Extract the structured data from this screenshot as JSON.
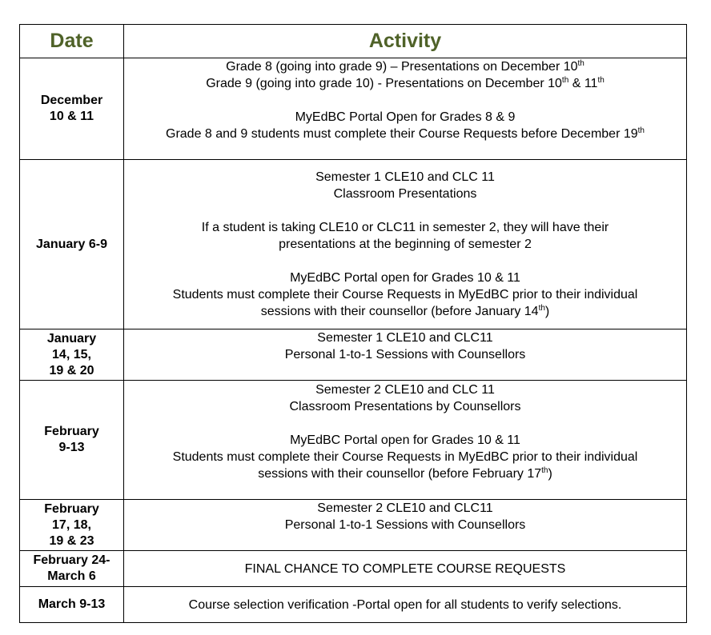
{
  "header": {
    "date": "Date",
    "activity": "Activity",
    "color": "#4f6228"
  },
  "rows": [
    {
      "date": [
        "December",
        "10 & 11"
      ],
      "height": 126,
      "lines": [
        [
          {
            "t": "Grade 8 (going into grade 9) – Presentations on December 10"
          },
          {
            "t": "th",
            "sup": true
          }
        ],
        [
          {
            "t": "Grade 9 (going into grade 10) - Presentations on December 10"
          },
          {
            "t": "th",
            "sup": true
          },
          {
            "t": " & 11"
          },
          {
            "t": "th",
            "sup": true
          }
        ],
        [],
        [
          {
            "t": "MyEdBC Portal Open for Grades 8 & 9"
          }
        ],
        [
          {
            "t": "Grade 8 and 9 students must complete their Course Requests before December 19"
          },
          {
            "t": "th",
            "sup": true
          }
        ],
        []
      ]
    },
    {
      "date": [
        "January 6-9"
      ],
      "height": 212,
      "lines": [
        [
          {
            "t": "Semester 1 CLE10 and CLC 11"
          }
        ],
        [
          {
            "t": "Classroom Presentations"
          }
        ],
        [],
        [
          {
            "t": "If a student is taking CLE10 or CLC11 in semester 2, they will have their"
          }
        ],
        [
          {
            "t": "presentations at the beginning of semester 2"
          }
        ],
        [],
        [
          {
            "t": "MyEdBC Portal open for Grades 10 & 11"
          }
        ],
        [
          {
            "t": "Students must complete their Course Requests in MyEdBC prior to their individual"
          }
        ],
        [
          {
            "t": "sessions with their counsellor (before January 14"
          },
          {
            "t": "th",
            "sup": true
          },
          {
            "t": ")"
          }
        ]
      ]
    },
    {
      "date": [
        "January",
        "14, 15,",
        "19 & 20"
      ],
      "height": 64,
      "lines": [
        [
          {
            "t": "Semester 1 CLE10 and CLC11"
          }
        ],
        [
          {
            "t": "Personal 1-to-1 Sessions with Counsellors"
          }
        ],
        []
      ]
    },
    {
      "date": [
        "February",
        "9-13"
      ],
      "height": 149,
      "lines": [
        [
          {
            "t": "Semester 2 CLE10 and CLC 11"
          }
        ],
        [
          {
            "t": "Classroom Presentations by Counsellors"
          }
        ],
        [],
        [
          {
            "t": "MyEdBC Portal open for Grades 10 & 11"
          }
        ],
        [
          {
            "t": "Students must complete their Course Requests in MyEdBC prior to their individual"
          }
        ],
        [
          {
            "t": "sessions with their counsellor (before February 17"
          },
          {
            "t": "th",
            "sup": true
          },
          {
            "t": ")"
          }
        ],
        []
      ]
    },
    {
      "date": [
        "February",
        "17, 18,",
        "19 & 23"
      ],
      "height": 64,
      "lines": [
        [
          {
            "t": "Semester 2 CLE10 and CLC11"
          }
        ],
        [
          {
            "t": "Personal 1-to-1 Sessions with Counsellors"
          }
        ],
        []
      ]
    },
    {
      "date": [
        "February 24-",
        "March 6"
      ],
      "height": 45,
      "lines": [
        [
          {
            "t": "FINAL CHANCE TO COMPLETE COURSE REQUESTS"
          }
        ]
      ]
    },
    {
      "date": [
        "March 9-13"
      ],
      "height": 45,
      "lines": [
        [
          {
            "t": "Course selection verification -Portal open for all students to verify selections."
          }
        ]
      ]
    }
  ]
}
